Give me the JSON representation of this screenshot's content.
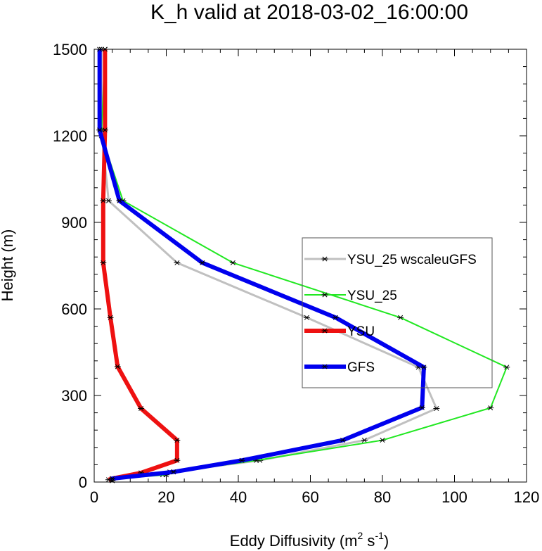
{
  "chart_data": {
    "type": "line",
    "title": "K_h valid at 2018-03-02_16:00:00",
    "xlabel": {
      "main": "Eddy Diffusivity (m",
      "sup1": "2",
      "mid": " s",
      "sup2": "-1",
      "end": ")"
    },
    "ylabel": "Height (m)",
    "xlim": [
      0,
      120
    ],
    "ylim": [
      0,
      1500
    ],
    "xticks": [
      0,
      20,
      40,
      60,
      80,
      100,
      120
    ],
    "yticks": [
      0,
      300,
      600,
      900,
      1200,
      1500
    ],
    "grid": false,
    "legend_position": "inside-right",
    "series": [
      {
        "name": "YSU_25 wscaleuGFS",
        "color": "#c0c0c0",
        "marker": "asterisk",
        "points": [
          [
            5,
            5
          ],
          [
            5,
            12
          ],
          [
            19,
            25
          ],
          [
            21,
            35
          ],
          [
            46,
            75
          ],
          [
            75,
            145
          ],
          [
            95,
            255
          ],
          [
            90,
            398
          ],
          [
            59,
            570
          ],
          [
            23,
            760
          ],
          [
            4,
            975
          ],
          [
            2,
            1220
          ],
          [
            2,
            1500
          ]
        ]
      },
      {
        "name": "YSU_25",
        "color": "#22e822",
        "marker": "asterisk",
        "points": [
          [
            5,
            5
          ],
          [
            5,
            12
          ],
          [
            20,
            25
          ],
          [
            22,
            35
          ],
          [
            45,
            75
          ],
          [
            80,
            145
          ],
          [
            110,
            257
          ],
          [
            114.5,
            398
          ],
          [
            85,
            570
          ],
          [
            38.5,
            760
          ],
          [
            8,
            975
          ],
          [
            2,
            1200
          ],
          [
            3,
            1500
          ]
        ]
      },
      {
        "name": "YSU",
        "color": "#ee1111",
        "marker": "asterisk",
        "points": [
          [
            4,
            8
          ],
          [
            5,
            12
          ],
          [
            13,
            32
          ],
          [
            23,
            75
          ],
          [
            23,
            145
          ],
          [
            13,
            255
          ],
          [
            6.5,
            400
          ],
          [
            4.5,
            570
          ],
          [
            2.5,
            760
          ],
          [
            2.5,
            975
          ],
          [
            3,
            1220
          ],
          [
            3,
            1500
          ]
        ]
      },
      {
        "name": "GFS",
        "color": "#0000ee",
        "marker": "asterisk",
        "points": [
          [
            5,
            5
          ],
          [
            5,
            12
          ],
          [
            22,
            35
          ],
          [
            41,
            75
          ],
          [
            69,
            145
          ],
          [
            91,
            258
          ],
          [
            91.5,
            398
          ],
          [
            67,
            570
          ],
          [
            30,
            760
          ],
          [
            7,
            975
          ],
          [
            1.5,
            1220
          ],
          [
            1.5,
            1500
          ]
        ]
      }
    ]
  }
}
